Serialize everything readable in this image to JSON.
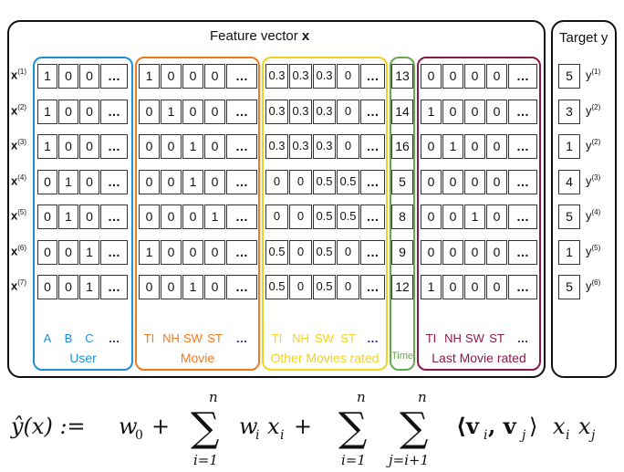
{
  "feature_title": "Feature vector",
  "feature_title_var": "x",
  "target_title": "Target y",
  "colors": {
    "user": "#1f8fd6",
    "movie": "#f07a1c",
    "other": "#f2d21e",
    "time": "#6aa84f",
    "last": "#8b1a4a",
    "black": "#111111"
  },
  "rows": [
    {
      "label": "x",
      "sup": "(1)",
      "user": [
        "1",
        "0",
        "0",
        "..."
      ],
      "movie": [
        "1",
        "0",
        "0",
        "0",
        "..."
      ],
      "other": [
        "0.3",
        "0.3",
        "0.3",
        "0",
        "..."
      ],
      "time": "13",
      "last": [
        "0",
        "0",
        "0",
        "0",
        "..."
      ],
      "target": "5",
      "target_sup": "(1)"
    },
    {
      "label": "x",
      "sup": "(2)",
      "user": [
        "1",
        "0",
        "0",
        "..."
      ],
      "movie": [
        "0",
        "1",
        "0",
        "0",
        "..."
      ],
      "other": [
        "0.3",
        "0.3",
        "0.3",
        "0",
        "..."
      ],
      "time": "14",
      "last": [
        "1",
        "0",
        "0",
        "0",
        "..."
      ],
      "target": "3",
      "target_sup": "(2)"
    },
    {
      "label": "x",
      "sup": "(3)",
      "user": [
        "1",
        "0",
        "0",
        "..."
      ],
      "movie": [
        "0",
        "0",
        "1",
        "0",
        "..."
      ],
      "other": [
        "0.3",
        "0.3",
        "0.3",
        "0",
        "..."
      ],
      "time": "16",
      "last": [
        "0",
        "1",
        "0",
        "0",
        "..."
      ],
      "target": "1",
      "target_sup": "(2)"
    },
    {
      "label": "x",
      "sup": "(4)",
      "user": [
        "0",
        "1",
        "0",
        "..."
      ],
      "movie": [
        "0",
        "0",
        "1",
        "0",
        "..."
      ],
      "other": [
        "0",
        "0",
        "0.5",
        "0.5",
        "..."
      ],
      "time": "5",
      "last": [
        "0",
        "0",
        "0",
        "0",
        "..."
      ],
      "target": "4",
      "target_sup": "(3)"
    },
    {
      "label": "x",
      "sup": "(5)",
      "user": [
        "0",
        "1",
        "0",
        "..."
      ],
      "movie": [
        "0",
        "0",
        "0",
        "1",
        "..."
      ],
      "other": [
        "0",
        "0",
        "0.5",
        "0.5",
        "..."
      ],
      "time": "8",
      "last": [
        "0",
        "0",
        "1",
        "0",
        "..."
      ],
      "target": "5",
      "target_sup": "(4)"
    },
    {
      "label": "x",
      "sup": "(6)",
      "user": [
        "0",
        "0",
        "1",
        "..."
      ],
      "movie": [
        "1",
        "0",
        "0",
        "0",
        "..."
      ],
      "other": [
        "0.5",
        "0",
        "0.5",
        "0",
        "..."
      ],
      "time": "9",
      "last": [
        "0",
        "0",
        "0",
        "0",
        "..."
      ],
      "target": "1",
      "target_sup": "(5)"
    },
    {
      "label": "x",
      "sup": "(7)",
      "user": [
        "0",
        "0",
        "1",
        "..."
      ],
      "movie": [
        "0",
        "0",
        "1",
        "0",
        "..."
      ],
      "other": [
        "0.5",
        "0",
        "0.5",
        "0",
        "..."
      ],
      "time": "12",
      "last": [
        "1",
        "0",
        "0",
        "0",
        "..."
      ],
      "target": "5",
      "target_sup": "(6)"
    }
  ],
  "groups": {
    "user": {
      "name": "User",
      "subcats": [
        "A",
        "B",
        "C",
        "..."
      ]
    },
    "movie": {
      "name": "Movie",
      "subcats": [
        "TI",
        "NH",
        "SW",
        "ST",
        "..."
      ]
    },
    "other": {
      "name": "Other Movies rated",
      "subcats": [
        "TI",
        "NH",
        "SW",
        "ST",
        "..."
      ]
    },
    "time": {
      "name": "Time",
      "subcats": []
    },
    "last": {
      "name": "Last Movie rated",
      "subcats": [
        "TI",
        "NH",
        "SW",
        "ST",
        "..."
      ]
    }
  },
  "formula": {
    "lhs": "ŷ(x) :=",
    "w0": "w",
    "w0_sub": "0",
    "plus": "+",
    "sum_upper": "n",
    "sum1_lower": "i=1",
    "term1": "w",
    "term1_sub": "i",
    "term1_x": "x",
    "term1_x_sub": "i",
    "sum2_lower": "i=1",
    "sum3_lower": "j=i+1",
    "inner": "⟨v",
    "inner_sub_i": "i",
    "inner_mid": ", v",
    "inner_sub_j": "j",
    "inner_end": "⟩",
    "xi": "x",
    "xi_sub": "i",
    "xj": "x",
    "xj_sub": "j"
  }
}
